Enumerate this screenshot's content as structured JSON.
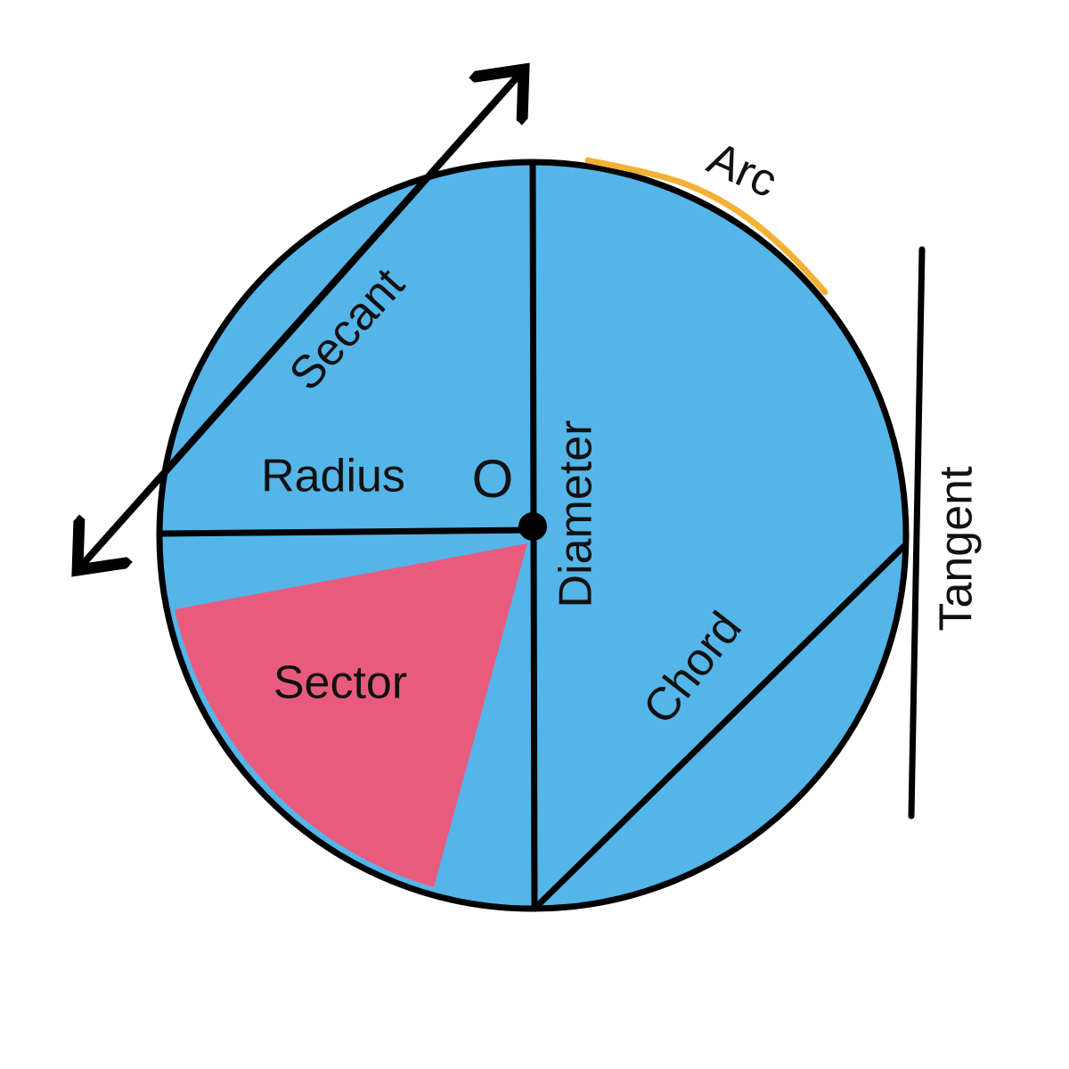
{
  "diagram": {
    "labels": {
      "secant": "Secant",
      "arc": "Arc",
      "radius": "Radius",
      "center": "O",
      "diameter": "Diameter",
      "tangent": "Tangent",
      "sector": "Sector",
      "chord": "Chord"
    },
    "colors": {
      "circle_fill": "#54b5e8",
      "sector_fill": "#e95b7d",
      "arc_highlight": "#f2b134",
      "stroke": "#000000",
      "background": "#ffffff"
    }
  }
}
